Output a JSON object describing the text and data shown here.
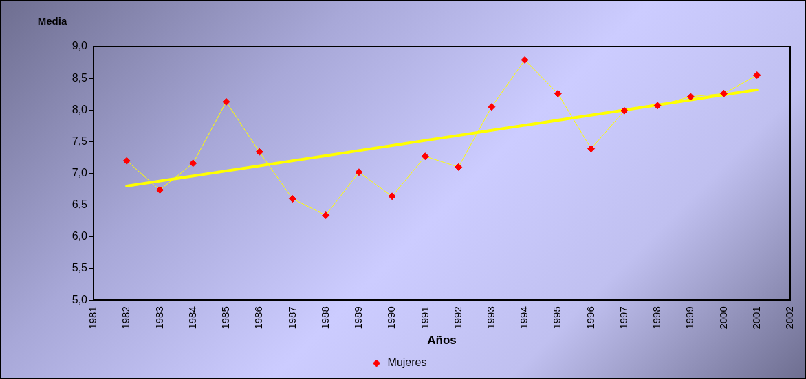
{
  "chart_data": {
    "type": "line",
    "xlabel": "Años",
    "ylabel": "Media",
    "x": [
      1982,
      1983,
      1984,
      1985,
      1986,
      1987,
      1988,
      1989,
      1990,
      1991,
      1992,
      1993,
      1994,
      1995,
      1996,
      1997,
      1998,
      1999,
      2000,
      2001
    ],
    "series": [
      {
        "name": "Mujeres",
        "color": "#ffff00",
        "colors": [
          "#ff0000",
          "#ff0000",
          "#ff0000",
          "#ff0000",
          "#ff0000",
          "#ff0000",
          "#ff0000",
          "#ff0000",
          "#ff0000",
          "#ff0000",
          "#ff0000",
          "#ff0000",
          "#ff0000",
          "#ff0000",
          "#ff0000",
          "#ff0000",
          "#ff0000",
          "#ff0000",
          "#ff0000",
          "#ff0000"
        ],
        "values": [
          7.2,
          6.74,
          7.16,
          8.13,
          7.34,
          6.6,
          6.34,
          7.02,
          6.64,
          7.27,
          7.1,
          8.05,
          8.79,
          8.26,
          7.39,
          7.99,
          8.07,
          8.21,
          8.26,
          8.55
        ]
      },
      {
        "type": "line",
        "color": "#ffff00",
        "marker": "none",
        "x": [
          1982,
          2001
        ],
        "values": [
          6.8,
          8.32
        ]
      }
    ],
    "xlim": [
      1981,
      2002
    ],
    "xticks": [
      1981,
      1982,
      1983,
      1984,
      1985,
      1986,
      1987,
      1988,
      1989,
      1990,
      1991,
      1992,
      1993,
      1994,
      1995,
      1996,
      1997,
      1998,
      1999,
      2000,
      2001,
      2002
    ],
    "ylim": [
      5,
      9
    ],
    "yticks": [
      {
        "value": 5,
        "label": "5,0"
      },
      {
        "value": 5.5,
        "label": "5,5"
      },
      {
        "value": 6,
        "label": "6,0"
      },
      {
        "value": 6.5,
        "label": "6,5"
      },
      {
        "value": 7,
        "label": "7,0"
      },
      {
        "value": 7.5,
        "label": "7,5"
      },
      {
        "value": 8,
        "label": "8,0"
      },
      {
        "value": 8.5,
        "label": "8,5"
      },
      {
        "value": 9,
        "label": "9,0"
      }
    ],
    "grid": false,
    "legend": "bottom",
    "marker": "diamond",
    "line_style": "solid"
  }
}
